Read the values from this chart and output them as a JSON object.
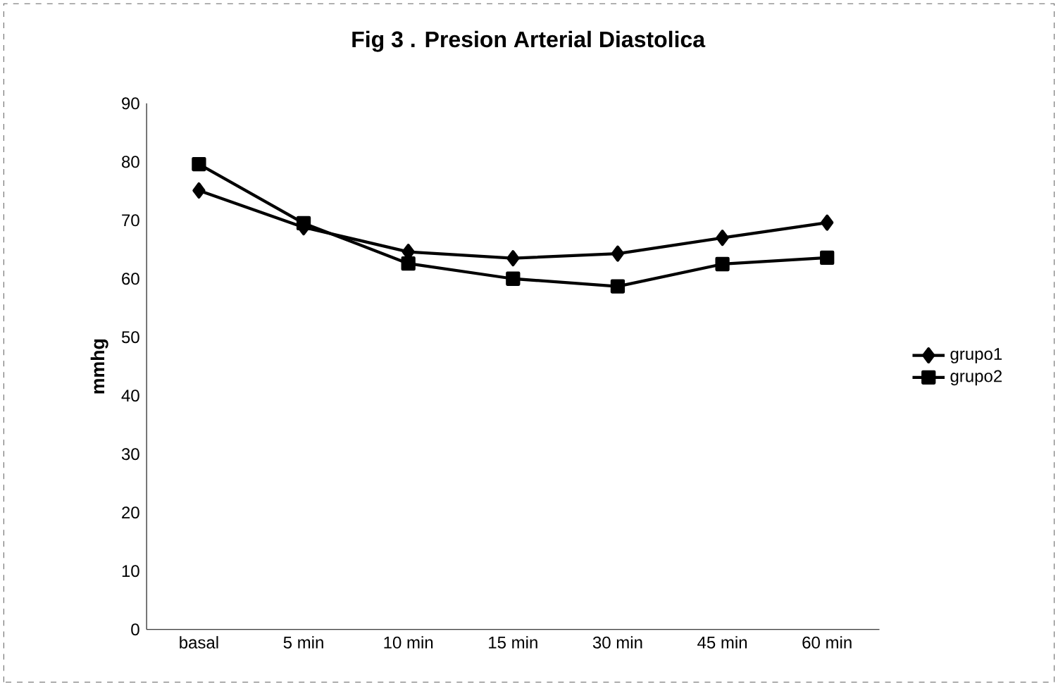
{
  "chart_data": {
    "type": "line",
    "title": "Fig 3 . Presion Arterial Diastolica",
    "ylabel": "mmhg",
    "categories": [
      "basal",
      "5 min",
      "10 min",
      "15 min",
      "30 min",
      "45 min",
      "60 min"
    ],
    "series": [
      {
        "name": "grupo1",
        "color": "#000000",
        "marker": "diamond",
        "values": [
          75.1,
          68.8,
          64.6,
          63.5,
          64.3,
          67,
          69.6
        ]
      },
      {
        "name": "grupo2",
        "color": "#000000",
        "marker": "square",
        "values": [
          79.6,
          69.5,
          62.6,
          60,
          58.7,
          62.5,
          63.6
        ]
      }
    ],
    "ylim": [
      0,
      90
    ],
    "yticks": [
      0,
      10,
      20,
      30,
      40,
      50,
      60,
      70,
      80,
      90
    ],
    "grid": false,
    "legend": "right",
    "line_style": "solid"
  }
}
